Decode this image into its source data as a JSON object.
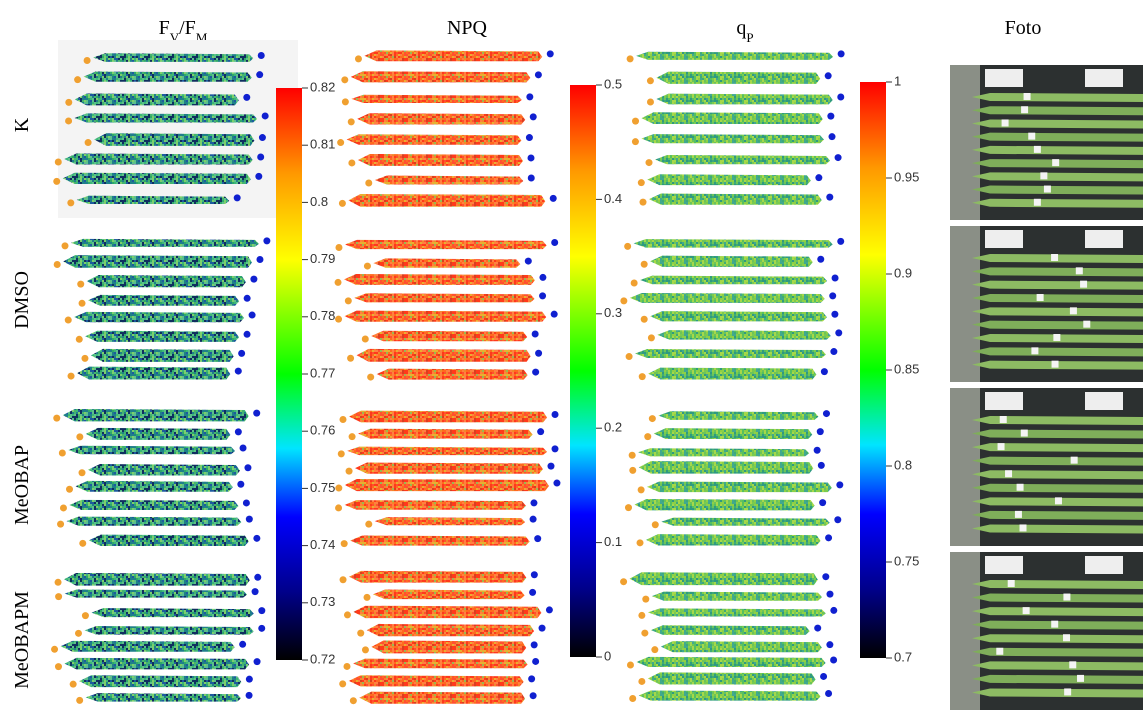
{
  "columns": [
    {
      "header": [
        {
          "text": "F"
        },
        {
          "sub": "V"
        },
        {
          "text": "/F"
        },
        {
          "sub": "M"
        }
      ],
      "colorbar": {
        "lim": [
          0.72,
          0.82
        ],
        "ticks": [
          0.72,
          0.73,
          0.74,
          0.75,
          0.76,
          0.77,
          0.78,
          0.79,
          0.8,
          0.81,
          0.82
        ]
      }
    },
    {
      "header": [
        {
          "text": "NPQ"
        }
      ],
      "colorbar": {
        "lim": [
          0,
          0.5
        ],
        "ticks": [
          0,
          0.1,
          0.2,
          0.3,
          0.4,
          0.5
        ]
      }
    },
    {
      "header": [
        {
          "text": "q"
        },
        {
          "sub": "P"
        }
      ],
      "colorbar": {
        "lim": [
          0.7,
          1
        ],
        "ticks": [
          0.7,
          0.75,
          0.8,
          0.85,
          0.9,
          0.95,
          1
        ]
      }
    },
    {
      "header": [
        {
          "text": "Foto"
        }
      ]
    }
  ],
  "rows": [
    "K",
    "DMSO",
    "MeOBAP",
    "MeOBAPM"
  ]
}
